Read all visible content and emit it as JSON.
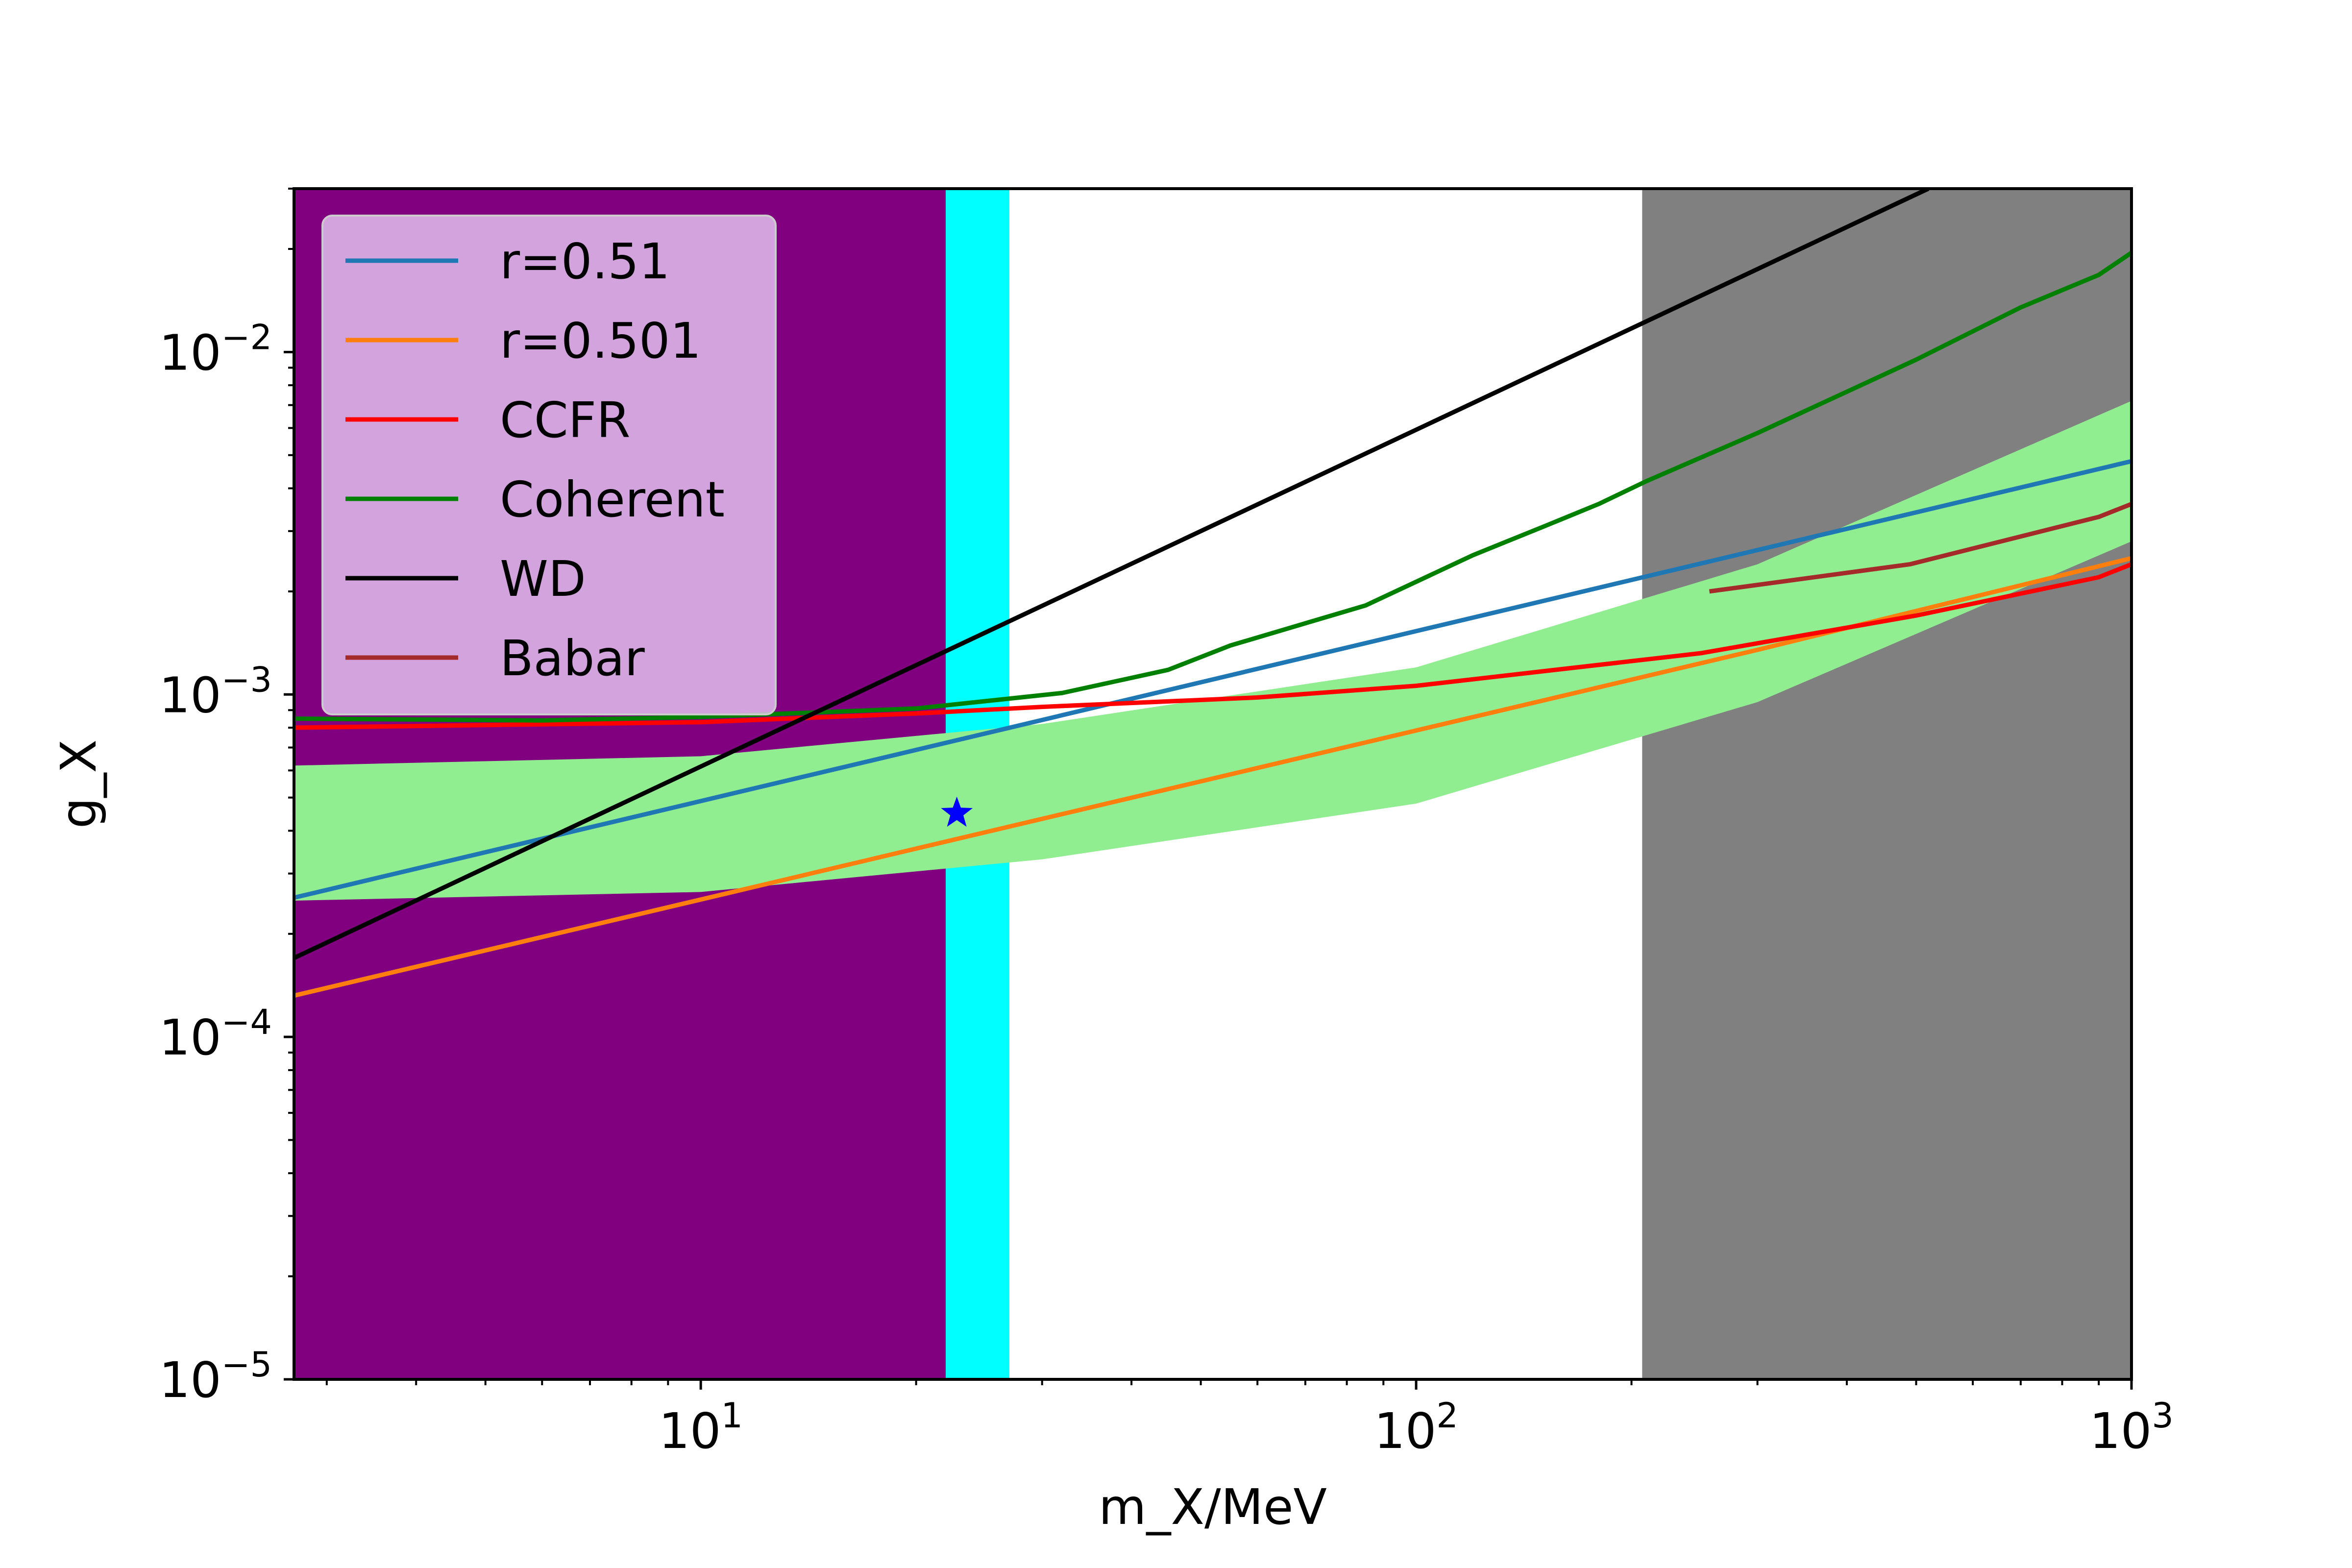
{
  "chart_data": {
    "type": "line",
    "title": "",
    "xlabel": "m_X/MeV",
    "ylabel": "g_X",
    "xscale": "log",
    "yscale": "log",
    "xlim": [
      2.7,
      1000
    ],
    "ylim": [
      1e-05,
      0.03
    ],
    "xticks": [
      {
        "value": 10,
        "base": "10",
        "exp": "1"
      },
      {
        "value": 100,
        "base": "10",
        "exp": "2"
      },
      {
        "value": 1000,
        "base": "10",
        "exp": "3"
      }
    ],
    "yticks": [
      {
        "value": 1e-05,
        "base": "10",
        "exp": "−5"
      },
      {
        "value": 0.0001,
        "base": "10",
        "exp": "−4"
      },
      {
        "value": 0.001,
        "base": "10",
        "exp": "−3"
      },
      {
        "value": 0.01,
        "base": "10",
        "exp": "−2"
      }
    ],
    "grid": false,
    "legend_position": "top-left",
    "shaded_regions": [
      {
        "color": "#800080",
        "x": [
          2.7,
          22
        ],
        "y_range": [
          1e-05,
          0.03
        ]
      },
      {
        "color": "#00ffff",
        "x": [
          22,
          27
        ],
        "y_range": [
          1e-05,
          0.03
        ]
      },
      {
        "color": "#808080",
        "x": [
          207,
          1000
        ],
        "y_range": [
          1e-05,
          0.03
        ]
      }
    ],
    "band": {
      "color": "#90ee90",
      "x": [
        2.7,
        10,
        30,
        100,
        300,
        1000
      ],
      "lower": [
        0.00025,
        0.000265,
        0.00033,
        0.00048,
        0.00095,
        0.0028
      ],
      "upper": [
        0.00062,
        0.00066,
        0.00082,
        0.0012,
        0.0024,
        0.0072
      ]
    },
    "series": [
      {
        "name": "r=0.51",
        "color": "#1f77b4",
        "x": [
          2.7,
          1000
        ],
        "y": [
          0.000255,
          0.0048
        ]
      },
      {
        "name": "r=0.501",
        "color": "#ff7f0e",
        "x": [
          2.7,
          300,
          1000
        ],
        "y": [
          0.000132,
          0.00135,
          0.0025
        ]
      },
      {
        "name": "CCFR",
        "color": "#ff0000",
        "x": [
          2.7,
          10,
          20,
          30,
          60,
          100,
          250,
          500,
          900,
          1000
        ],
        "y": [
          0.0008,
          0.00083,
          0.00088,
          0.00092,
          0.00098,
          0.00106,
          0.00132,
          0.0017,
          0.0022,
          0.0024
        ]
      },
      {
        "name": "Coherent",
        "color": "#008000",
        "x": [
          2.7,
          6,
          10,
          20,
          32,
          45,
          55,
          85,
          120,
          150,
          180,
          210,
          300,
          500,
          700,
          900,
          1000
        ],
        "y": [
          0.00085,
          0.00084,
          0.00086,
          0.00091,
          0.00101,
          0.00118,
          0.00139,
          0.00182,
          0.00255,
          0.00308,
          0.0036,
          0.0042,
          0.0058,
          0.0095,
          0.0135,
          0.0168,
          0.0195
        ]
      },
      {
        "name": "WD",
        "color": "#000000",
        "x": [
          2.7,
          520
        ],
        "y": [
          0.00017,
          0.03
        ]
      },
      {
        "name": "Babar",
        "color": "#a52a2a",
        "x": [
          257,
          490,
          900,
          1000
        ],
        "y": [
          0.002,
          0.0024,
          0.0033,
          0.0036
        ]
      }
    ],
    "markers": [
      {
        "x": 22.8,
        "y": 0.00045,
        "symbol": "star",
        "color": "#0000ff"
      }
    ]
  }
}
